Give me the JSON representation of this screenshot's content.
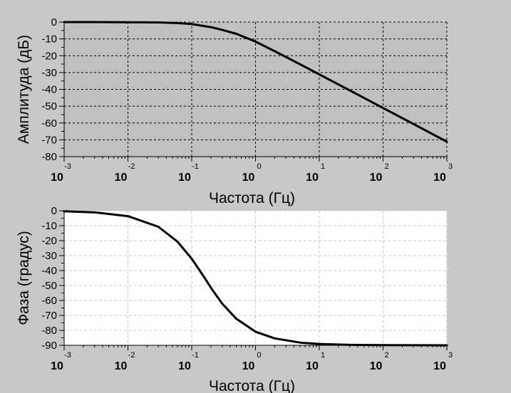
{
  "chart_data": [
    {
      "type": "line",
      "xlabel": "Частота (Гц)",
      "ylabel": "Амплитуда (дБ)",
      "x_scale": "log",
      "xlim": [
        0.001,
        1000
      ],
      "ylim": [
        -80,
        0
      ],
      "yticks": [
        "0",
        "-10",
        "-20",
        "-30",
        "-40",
        "-50",
        "-60",
        "-70",
        "-80"
      ],
      "xticks": [
        {
          "base": "10",
          "exp": "-3"
        },
        {
          "base": "10",
          "exp": "-2"
        },
        {
          "base": "10",
          "exp": "-1"
        },
        {
          "base": "10",
          "exp": "0"
        },
        {
          "base": "10",
          "exp": "1"
        },
        {
          "base": "10",
          "exp": "2"
        },
        {
          "base": "10",
          "exp": "3"
        }
      ],
      "grid": true,
      "background": "#c0c0c0",
      "series": [
        {
          "x": [
            0.001,
            0.003,
            0.01,
            0.03,
            0.06,
            0.1,
            0.2,
            0.3,
            0.5,
            1,
            2,
            5,
            10,
            30,
            100,
            300,
            1000
          ],
          "y": [
            0,
            0,
            -0.1,
            -0.2,
            -0.6,
            -1.2,
            -3.0,
            -4.6,
            -7.0,
            -11.6,
            -17.3,
            -25.1,
            -31.1,
            -40.6,
            -51.1,
            -60.6,
            -71.1
          ],
          "color": "#000000"
        }
      ]
    },
    {
      "type": "line",
      "xlabel": "Частота (Гц)",
      "ylabel": "Фаза (градус)",
      "x_scale": "log",
      "xlim": [
        0.001,
        1000
      ],
      "ylim": [
        -90,
        0
      ],
      "yticks": [
        "0",
        "-10",
        "-20",
        "-30",
        "-40",
        "-50",
        "-60",
        "-70",
        "-80",
        "-90"
      ],
      "xticks": [
        {
          "base": "10",
          "exp": "-3"
        },
        {
          "base": "10",
          "exp": "-2"
        },
        {
          "base": "10",
          "exp": "-1"
        },
        {
          "base": "10",
          "exp": "0"
        },
        {
          "base": "10",
          "exp": "1"
        },
        {
          "base": "10",
          "exp": "2"
        },
        {
          "base": "10",
          "exp": "3"
        }
      ],
      "grid": true,
      "background": "#ffffff",
      "series": [
        {
          "x": [
            0.001,
            0.003,
            0.01,
            0.03,
            0.06,
            0.1,
            0.16,
            0.2,
            0.3,
            0.5,
            1,
            2,
            5,
            10,
            30,
            100,
            1000
          ],
          "y": [
            -0.4,
            -1.1,
            -3.6,
            -10.7,
            -20.7,
            -32.1,
            -45.0,
            -51.5,
            -62.1,
            -72.3,
            -80.9,
            -85.4,
            -88.2,
            -89.1,
            -89.7,
            -89.9,
            -90.0
          ],
          "color": "#000000"
        }
      ]
    }
  ]
}
